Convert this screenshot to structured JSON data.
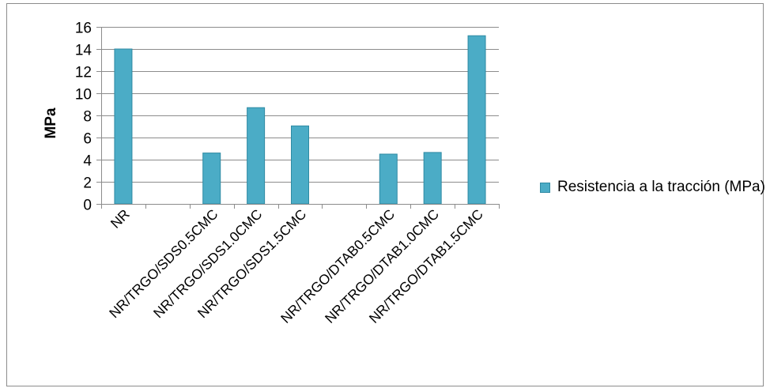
{
  "chart_data": {
    "type": "bar",
    "categories": [
      "NR",
      "",
      "NR/TRGO/SDS0.5CMC",
      "NR/TRGO/SDS1.0CMC",
      "NR/TRGO/SDS1.5CMC",
      "",
      "NR/TRGO/DTAB0.5CMC",
      "NR/TRGO/DTAB1.0CMC",
      "NR/TRGO/DTAB1.5CMC"
    ],
    "series": [
      {
        "name": "Resistencia a la tracción (MPa)",
        "values": [
          14.0,
          null,
          4.6,
          8.7,
          7.05,
          null,
          4.5,
          4.65,
          15.2
        ]
      }
    ],
    "ylabel": "MPa",
    "xlabel": "",
    "ylim": [
      0,
      16
    ],
    "yticks": [
      0,
      2,
      4,
      6,
      8,
      10,
      12,
      14,
      16
    ],
    "grid": true,
    "legend_position": "right",
    "colors": {
      "bar_fill": "#4bacc6",
      "bar_stroke": "#2f8aa3",
      "grid": "#8c8c8c",
      "axis": "#8c8c8c"
    }
  }
}
